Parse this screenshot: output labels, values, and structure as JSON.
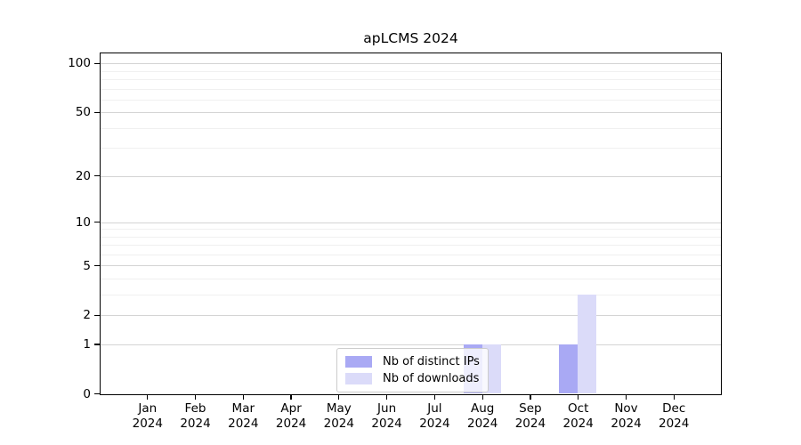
{
  "page": {
    "background": "#ffffff"
  },
  "chart_data": {
    "type": "bar",
    "title": "apLCMS 2024",
    "categories": [
      "Jan 2024",
      "Feb 2024",
      "Mar 2024",
      "Apr 2024",
      "May 2024",
      "Jun 2024",
      "Jul 2024",
      "Aug 2024",
      "Sep 2024",
      "Oct 2024",
      "Nov 2024",
      "Dec 2024"
    ],
    "series": [
      {
        "name": "Nb of distinct IPs",
        "color": "#a9a9f4",
        "values": [
          0,
          0,
          0,
          0,
          0,
          0,
          0,
          1,
          0,
          1,
          0,
          0
        ]
      },
      {
        "name": "Nb of downloads",
        "color": "#dbdbf9",
        "values": [
          0,
          0,
          0,
          0,
          0,
          0,
          0,
          1,
          0,
          3,
          0,
          0
        ]
      }
    ],
    "xlabel": "",
    "ylabel": "",
    "y_scale": "log1p",
    "ylim": [
      0,
      115
    ],
    "y_major_ticks": [
      0,
      1,
      2,
      5,
      10,
      20,
      50,
      100
    ],
    "y_minor_gridlines": [
      3,
      4,
      6,
      7,
      8,
      9,
      30,
      40,
      60,
      70,
      80,
      90
    ],
    "grid": true,
    "legend_position": "inside-bottom-center",
    "colors": {
      "major_grid": "#d4d4d4",
      "minor_grid": "#f0f0f0",
      "spine": "#000000",
      "text": "#000000",
      "legend_border": "#cccccc",
      "legend_background": "rgba(255,255,255,0.8)"
    }
  }
}
